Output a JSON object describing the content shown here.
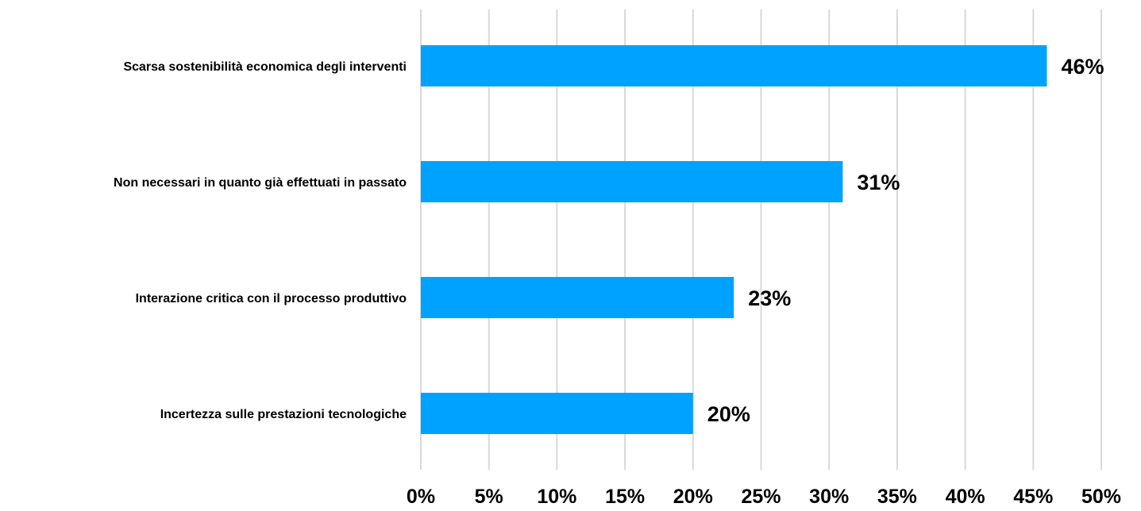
{
  "chart_data": {
    "type": "bar",
    "orientation": "horizontal",
    "categories": [
      "Scarsa sostenibilità economica degli interventi",
      "Non necessari in quanto già effettuati in passato",
      "Interazione critica con il processo produttivo",
      "Incertezza sulle prestazioni tecnologiche"
    ],
    "values": [
      46,
      31,
      23,
      20
    ],
    "data_labels": [
      "46%",
      "31%",
      "23%",
      "20%"
    ],
    "title": "",
    "xlabel": "",
    "ylabel": "",
    "xlim": [
      0,
      50
    ],
    "x_ticks": [
      0,
      5,
      10,
      15,
      20,
      25,
      30,
      35,
      40,
      45,
      50
    ],
    "x_tick_labels": [
      "0%",
      "5%",
      "10%",
      "15%",
      "20%",
      "25%",
      "30%",
      "35%",
      "40%",
      "45%",
      "50%"
    ],
    "grid": "vertical",
    "legend": "none",
    "bar_color": "#00a2ff",
    "grid_color": "#d9d9d9"
  }
}
